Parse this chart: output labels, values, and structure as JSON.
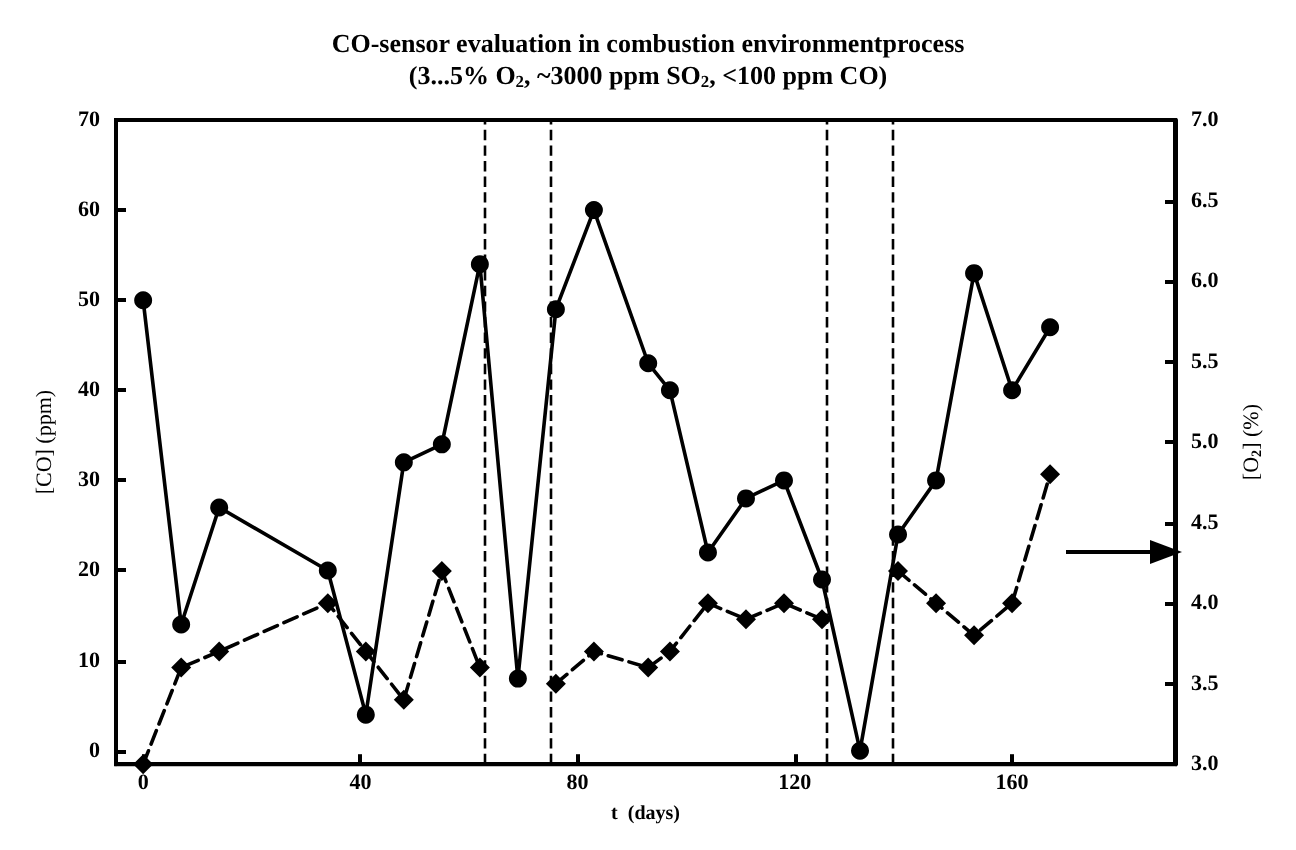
{
  "chart_data": {
    "type": "line",
    "title": "CO-sensor evaluation in combustion environmentprocess",
    "subtitle": "(3...5% O$_{2}$, ~3000 ppm SO$_{2}$, <100 ppm CO)",
    "xlabel": "t  (days)",
    "ylabel": "[CO] (ppm)",
    "y2label": "[O$_{2}$] (%)",
    "x": [
      0,
      7,
      14,
      34,
      41,
      48,
      55,
      62,
      69,
      76,
      83,
      93,
      97,
      104,
      111,
      118,
      125,
      132,
      139,
      146,
      153,
      160,
      167
    ],
    "series": [
      {
        "color": "#000000",
        "marker": "circle",
        "line_style": "solid",
        "values": [
          50,
          14,
          27,
          20,
          4,
          32,
          34,
          54,
          8,
          49,
          60,
          43,
          40,
          22,
          28,
          30,
          19,
          0,
          24,
          30,
          53,
          40,
          47
        ]
      },
      {
        "color": "#000000",
        "marker": "diamond",
        "line_style": "dashed",
        "axis": "y2",
        "values": [
          3.0,
          3.6,
          3.7,
          4.0,
          3.7,
          3.4,
          4.2,
          3.6,
          null,
          3.5,
          3.7,
          3.6,
          3.7,
          4.0,
          3.9,
          4.0,
          3.9,
          null,
          4.2,
          4.0,
          3.8,
          4.0,
          4.8
        ]
      }
    ],
    "xlim": [
      -5,
      190
    ],
    "xticks": [
      0,
      40,
      80,
      120,
      160
    ],
    "ylim": [
      -1.5,
      70
    ],
    "yticks": [
      0,
      10,
      20,
      30,
      40,
      50,
      60,
      70
    ],
    "y2lim": [
      3,
      7
    ],
    "y2ticks": [
      {
        "value": 3,
        "label": "3.0"
      },
      {
        "value": 3.5,
        "label": "3.5"
      },
      {
        "value": 4,
        "label": "4.0"
      },
      {
        "value": 4.5,
        "label": "4.5"
      },
      {
        "value": 5,
        "label": "5.0"
      },
      {
        "value": 5.5,
        "label": "5.5"
      },
      {
        "value": 6,
        "label": "6.0"
      },
      {
        "value": 6.5,
        "label": "6.5"
      },
      {
        "value": 7,
        "label": "7.0"
      }
    ],
    "ref_lines": [
      {
        "axis": "x",
        "value": 63,
        "line_style": "dashed",
        "color": "#000000"
      },
      {
        "axis": "x",
        "value": 75,
        "line_style": "dashed",
        "color": "#000000"
      },
      {
        "axis": "x",
        "value": 126,
        "line_style": "dashed",
        "color": "#000000"
      },
      {
        "axis": "x",
        "value": 138,
        "line_style": "dashed",
        "color": "#000000"
      }
    ]
  }
}
